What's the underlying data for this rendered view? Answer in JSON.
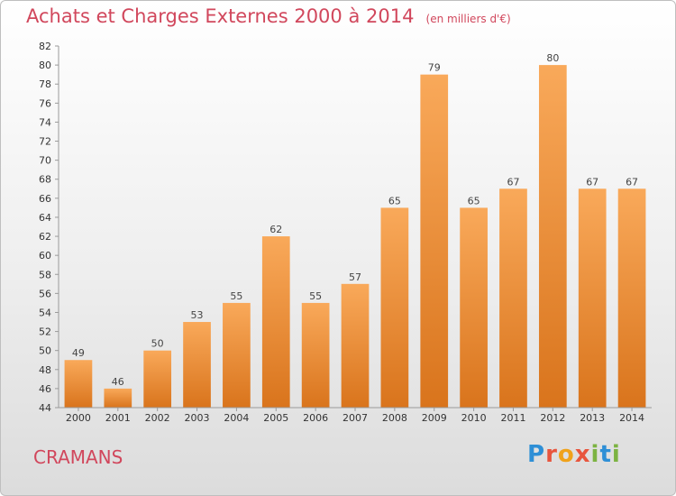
{
  "header": {
    "title": "Achats et Charges Externes 2000 à 2014",
    "subtitle": "(en milliers d'€)"
  },
  "commune": "CRAMANS",
  "logo": {
    "text": "Proxiti",
    "letter_colors": [
      "#2e8fd6",
      "#e8553d",
      "#f0a21a",
      "#e8553d",
      "#7cb342",
      "#2e8fd6",
      "#7cb342"
    ]
  },
  "colors": {
    "bar_top": "#f9a95a",
    "bar_bottom": "#d9741c",
    "title": "#d1475c"
  },
  "chart_data": {
    "type": "bar",
    "categories": [
      "2000",
      "2001",
      "2002",
      "2003",
      "2004",
      "2005",
      "2006",
      "2007",
      "2008",
      "2009",
      "2010",
      "2011",
      "2012",
      "2013",
      "2014"
    ],
    "values": [
      49,
      46,
      50,
      53,
      55,
      62,
      55,
      57,
      65,
      79,
      65,
      67,
      80,
      67,
      67
    ],
    "ylim": [
      44,
      82
    ],
    "yticks": [
      44,
      46,
      48,
      50,
      52,
      54,
      56,
      58,
      60,
      62,
      64,
      66,
      68,
      70,
      72,
      74,
      76,
      78,
      80,
      82
    ],
    "grid": false,
    "legend": "none"
  }
}
